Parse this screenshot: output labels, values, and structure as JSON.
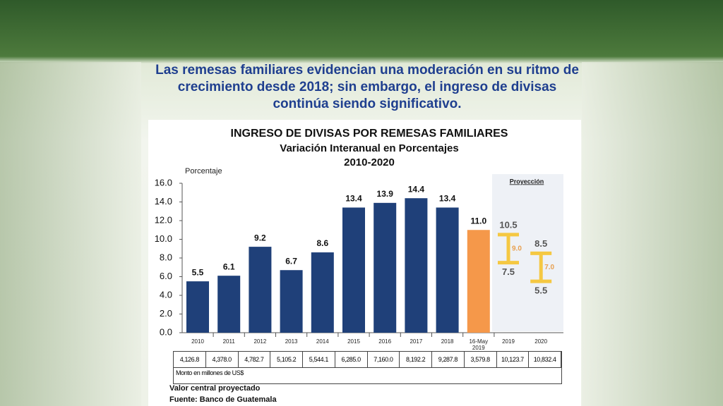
{
  "headline": [
    "Las remesas familiares evidencian una moderación en su ritmo de",
    "crecimiento desde 2018; sin embargo, el ingreso de divisas",
    "continúa  siendo significativo."
  ],
  "chart_data": {
    "type": "bar",
    "title": "INGRESO DE DIVISAS POR REMESAS FAMILIARES",
    "subtitle": "Variación Interanual en Porcentajes",
    "period": "2010-2020",
    "y_label": "Porcentaje",
    "categories": [
      "2010",
      "2011",
      "2012",
      "2013",
      "2014",
      "2015",
      "2016",
      "2017",
      "2018",
      "16-May 2019"
    ],
    "values": [
      5.5,
      6.1,
      9.2,
      6.7,
      8.6,
      13.4,
      13.9,
      14.4,
      13.4,
      11.0
    ],
    "value_labels": [
      "5.5",
      "6.1",
      "9.2",
      "6.7",
      "8.6",
      "13.4",
      "13.9",
      "14.4",
      "13.4",
      "11.0"
    ],
    "colors": [
      "#1f4079",
      "#1f4079",
      "#1f4079",
      "#1f4079",
      "#1f4079",
      "#1f4079",
      "#1f4079",
      "#1f4079",
      "#1f4079",
      "#f5984a"
    ],
    "ylim": [
      0,
      16
    ],
    "yticks": [
      {
        "value": 0,
        "label": "0.0"
      },
      {
        "value": 2,
        "label": "2.0"
      },
      {
        "value": 4,
        "label": "4.0"
      },
      {
        "value": 6,
        "label": "6.0"
      },
      {
        "value": 8,
        "label": "8.0"
      },
      {
        "value": 10,
        "label": "10.0"
      },
      {
        "value": 12,
        "label": "12.0"
      },
      {
        "value": 14,
        "label": "14.0"
      },
      {
        "value": 16,
        "label": "16.0"
      }
    ],
    "projection": {
      "label": "Proyección",
      "categories": [
        "2019",
        "2020"
      ],
      "low": [
        7.5,
        5.5
      ],
      "high": [
        10.5,
        8.5
      ],
      "central": [
        9.0,
        7.0
      ],
      "central_labels": [
        "9.0",
        "7.0"
      ],
      "color": "#f5c842",
      "central_color": "#e8a050"
    },
    "amounts": [
      "4,126.8",
      "4,378.0",
      "4,782.7",
      "5,105.2",
      "5,544.1",
      "6,285.0",
      "7,160.0",
      "8,192.2",
      "9,287.8",
      "3,579.8",
      "10,123.7",
      "10,832.4"
    ],
    "amounts_note": "Monto en millones de US$"
  },
  "notes": [
    "Valor central proyectado",
    "Fuente: Banco de Guatemala"
  ]
}
